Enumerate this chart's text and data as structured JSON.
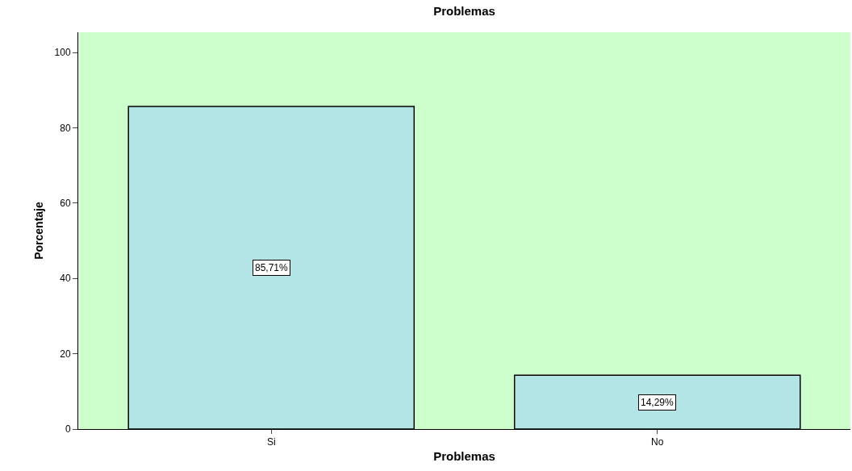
{
  "chart_data": {
    "type": "bar",
    "title": "Problemas",
    "xlabel": "Problemas",
    "ylabel": "Porcentaje",
    "categories": [
      "Si",
      "No"
    ],
    "values": [
      85.71,
      14.29
    ],
    "value_labels": [
      "85,71%",
      "14,29%"
    ],
    "color": "#b3e5e7",
    "ylim": [
      0,
      105.4
    ],
    "yticks": [
      0,
      20,
      40,
      60,
      80,
      100
    ],
    "grid": false,
    "legend": false
  }
}
